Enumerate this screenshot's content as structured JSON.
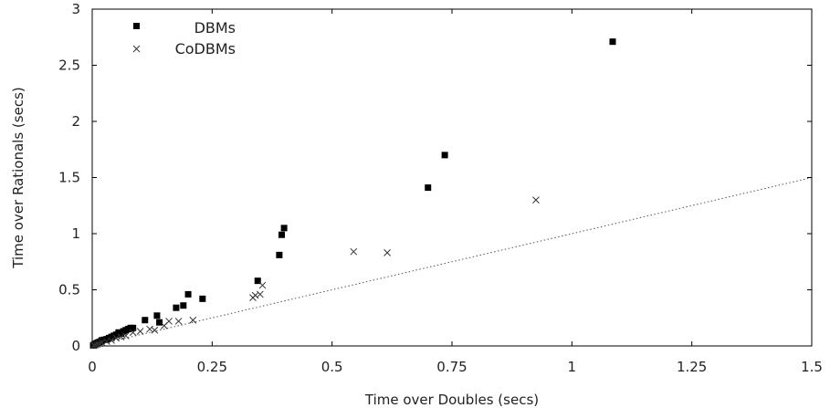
{
  "chart_data": {
    "type": "scatter",
    "xlabel": "Time over Doubles (secs)",
    "ylabel": "Time over Rationals (secs)",
    "xlim": [
      0,
      1.5
    ],
    "ylim": [
      0,
      3
    ],
    "xticks": [
      "0",
      "0.25",
      "0.5",
      "0.75",
      "1",
      "1.25",
      "1.5"
    ],
    "yticks": [
      "0",
      "0.5",
      "1",
      "1.5",
      "2",
      "2.5",
      "3"
    ],
    "grid": false,
    "legend_position": "top-left",
    "reference_line": {
      "from": [
        0,
        0
      ],
      "to": [
        1.5,
        1.5
      ],
      "style": "dotted"
    },
    "series": [
      {
        "name": "DBMs",
        "marker": "square",
        "color": "#000000",
        "points": [
          [
            0.002,
            0.005
          ],
          [
            0.004,
            0.01
          ],
          [
            0.006,
            0.015
          ],
          [
            0.008,
            0.02
          ],
          [
            0.01,
            0.025
          ],
          [
            0.012,
            0.03
          ],
          [
            0.015,
            0.035
          ],
          [
            0.018,
            0.04
          ],
          [
            0.02,
            0.05
          ],
          [
            0.025,
            0.055
          ],
          [
            0.03,
            0.06
          ],
          [
            0.035,
            0.07
          ],
          [
            0.04,
            0.08
          ],
          [
            0.045,
            0.09
          ],
          [
            0.05,
            0.1
          ],
          [
            0.055,
            0.12
          ],
          [
            0.06,
            0.11
          ],
          [
            0.065,
            0.13
          ],
          [
            0.07,
            0.14
          ],
          [
            0.075,
            0.15
          ],
          [
            0.08,
            0.16
          ],
          [
            0.085,
            0.16
          ],
          [
            0.11,
            0.23
          ],
          [
            0.135,
            0.27
          ],
          [
            0.14,
            0.21
          ],
          [
            0.175,
            0.34
          ],
          [
            0.19,
            0.36
          ],
          [
            0.2,
            0.46
          ],
          [
            0.23,
            0.42
          ],
          [
            0.345,
            0.58
          ],
          [
            0.39,
            0.81
          ],
          [
            0.395,
            0.99
          ],
          [
            0.4,
            1.05
          ],
          [
            0.7,
            1.41
          ],
          [
            0.735,
            1.7
          ],
          [
            1.085,
            2.71
          ]
        ]
      },
      {
        "name": "CoDBMs",
        "marker": "cross",
        "color": "#333333",
        "points": [
          [
            0.003,
            0.004
          ],
          [
            0.006,
            0.008
          ],
          [
            0.01,
            0.013
          ],
          [
            0.015,
            0.02
          ],
          [
            0.02,
            0.03
          ],
          [
            0.03,
            0.04
          ],
          [
            0.04,
            0.05
          ],
          [
            0.05,
            0.07
          ],
          [
            0.06,
            0.08
          ],
          [
            0.07,
            0.09
          ],
          [
            0.085,
            0.12
          ],
          [
            0.1,
            0.13
          ],
          [
            0.12,
            0.15
          ],
          [
            0.13,
            0.14
          ],
          [
            0.15,
            0.18
          ],
          [
            0.16,
            0.22
          ],
          [
            0.18,
            0.22
          ],
          [
            0.21,
            0.23
          ],
          [
            0.335,
            0.43
          ],
          [
            0.34,
            0.45
          ],
          [
            0.35,
            0.46
          ],
          [
            0.355,
            0.54
          ],
          [
            0.545,
            0.84
          ],
          [
            0.615,
            0.83
          ],
          [
            0.925,
            1.3
          ]
        ]
      }
    ]
  }
}
